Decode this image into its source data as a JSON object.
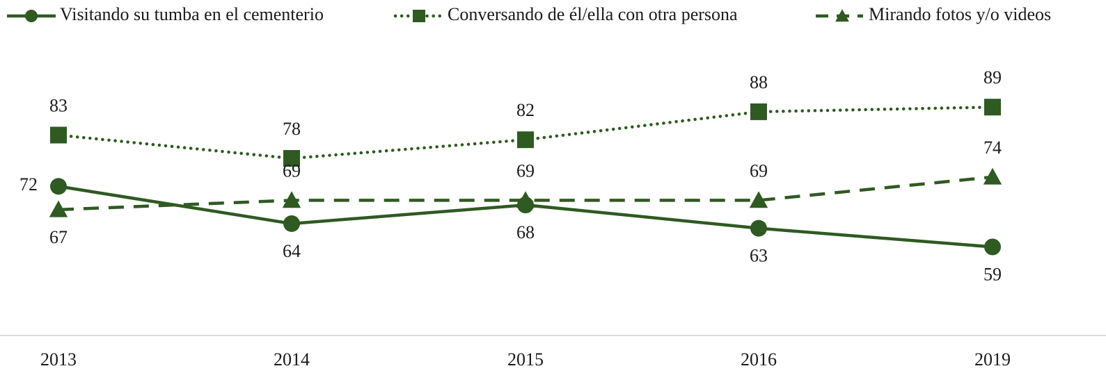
{
  "chart_data": {
    "type": "line",
    "categories": [
      "2013",
      "2014",
      "2015",
      "2016",
      "2019"
    ],
    "series": [
      {
        "name": "Visitando su tumba en el cementerio",
        "color": "#2f5a22",
        "values": [
          72,
          64,
          68,
          63,
          59
        ]
      },
      {
        "name": "Conversando de él/ella con otra persona",
        "color": "#2f5a22",
        "values": [
          83,
          78,
          82,
          88,
          89
        ]
      },
      {
        "name": "Mirando fotos y/o videos",
        "color": "#2f5a22",
        "values": [
          67,
          69,
          69,
          69,
          74
        ]
      }
    ],
    "ylim": [
      40,
      100
    ],
    "legend": "top"
  }
}
